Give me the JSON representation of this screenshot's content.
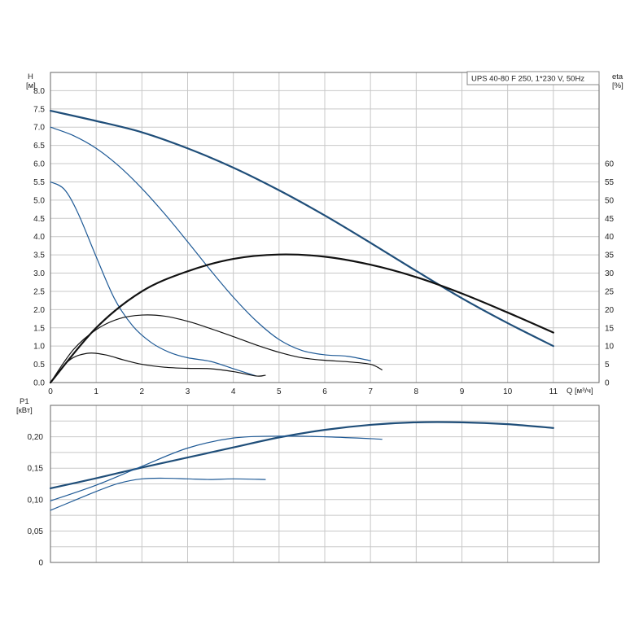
{
  "chart_data": [
    {
      "type": "line",
      "legend": "UPS 40-80 F 250, 1*230 V, 50Hz",
      "ylabel": "H",
      "yunit": "[м]",
      "y2label": "eta",
      "y2unit": "[%]",
      "xlabel": "Q [м³/ч]",
      "xlim": [
        0,
        12
      ],
      "ylim": [
        0,
        8.5
      ],
      "y2lim": [
        0,
        85
      ],
      "xticks": [
        "0",
        "1",
        "2",
        "3",
        "4",
        "5",
        "6",
        "7",
        "8",
        "9",
        "10",
        "11"
      ],
      "yticks": [
        "0.0",
        "0.5",
        "1.0",
        "1.5",
        "2.0",
        "2.5",
        "3.0",
        "3.5",
        "4.0",
        "4.5",
        "5.0",
        "5.5",
        "6.0",
        "6.5",
        "7.0",
        "7.5",
        "8.0"
      ],
      "y2ticks": [
        "0",
        "5",
        "10",
        "15",
        "20",
        "25",
        "30",
        "35",
        "40",
        "45",
        "50",
        "55",
        "60"
      ],
      "series": [
        {
          "kind": "head",
          "color": "#1f4e79",
          "width": 2.2,
          "x": [
            0,
            1,
            2,
            3,
            4,
            5,
            6,
            7,
            8,
            9,
            10,
            11
          ],
          "y": [
            7.45,
            7.17,
            6.86,
            6.42,
            5.89,
            5.27,
            4.58,
            3.83,
            3.06,
            2.31,
            1.63,
            1.0
          ]
        },
        {
          "kind": "head",
          "color": "#1f5a96",
          "width": 1.2,
          "x": [
            0,
            0.5,
            1,
            1.5,
            2,
            2.5,
            3,
            3.5,
            4,
            4.5,
            5,
            5.5,
            6,
            6.5,
            7
          ],
          "y": [
            7.0,
            6.77,
            6.42,
            5.93,
            5.32,
            4.62,
            3.86,
            3.08,
            2.34,
            1.69,
            1.18,
            0.88,
            0.76,
            0.72,
            0.6
          ]
        },
        {
          "kind": "head",
          "color": "#1f5a96",
          "width": 1.2,
          "x": [
            0,
            0.3,
            0.6,
            1.0,
            1.4,
            1.8,
            2.2,
            2.6,
            3.0,
            3.5,
            4.0,
            4.5
          ],
          "y": [
            5.5,
            5.3,
            4.65,
            3.45,
            2.3,
            1.55,
            1.1,
            0.83,
            0.68,
            0.58,
            0.38,
            0.18
          ]
        },
        {
          "kind": "eta",
          "color": "#111111",
          "width": 2.2,
          "x": [
            0,
            1,
            2,
            3,
            4,
            5,
            6,
            7,
            8,
            9,
            10,
            11
          ],
          "y": [
            0,
            15,
            25,
            30.5,
            33.9,
            35.1,
            34.5,
            32.3,
            28.9,
            24.4,
            19.2,
            13.7
          ]
        },
        {
          "kind": "eta",
          "color": "#111111",
          "width": 1.2,
          "x": [
            0,
            0.5,
            1,
            1.5,
            2,
            2.5,
            3,
            3.5,
            4,
            4.5,
            5,
            5.5,
            6,
            6.5,
            7,
            7.25
          ],
          "y": [
            0,
            9,
            14.5,
            17.5,
            18.5,
            18.2,
            16.8,
            14.8,
            12.6,
            10.3,
            8.3,
            6.8,
            6.1,
            5.7,
            5.0,
            3.5
          ]
        },
        {
          "kind": "eta",
          "color": "#111111",
          "width": 1.2,
          "x": [
            0,
            0.4,
            0.8,
            1.2,
            1.6,
            2.0,
            2.5,
            3.0,
            3.5,
            4.0,
            4.5,
            4.7
          ],
          "y": [
            0,
            6,
            8.0,
            7.6,
            6.2,
            5.0,
            4.2,
            3.9,
            3.8,
            3.0,
            1.8,
            2.0
          ]
        }
      ]
    },
    {
      "type": "line",
      "ylabel": "P1",
      "yunit": "[кВт]",
      "xlim": [
        0,
        12
      ],
      "ylim": [
        0,
        0.25
      ],
      "yticks": [
        "0",
        "0,05",
        "0,10",
        "0,15",
        "0,20"
      ],
      "series": [
        {
          "color": "#1f4e79",
          "width": 2.2,
          "x": [
            0,
            1,
            2,
            3,
            4,
            5,
            6,
            7,
            8,
            9,
            10,
            11
          ],
          "y": [
            0.118,
            0.134,
            0.151,
            0.167,
            0.183,
            0.199,
            0.211,
            0.219,
            0.223,
            0.223,
            0.22,
            0.214
          ]
        },
        {
          "color": "#1f5a96",
          "width": 1.2,
          "x": [
            0,
            1,
            2,
            3,
            4,
            5,
            6,
            7,
            7.25
          ],
          "y": [
            0.098,
            0.123,
            0.153,
            0.182,
            0.198,
            0.201,
            0.2,
            0.197,
            0.196
          ]
        },
        {
          "color": "#1f5a96",
          "width": 1.2,
          "x": [
            0,
            0.5,
            1,
            1.5,
            2,
            2.5,
            3,
            3.5,
            4,
            4.7
          ],
          "y": [
            0.083,
            0.098,
            0.113,
            0.126,
            0.133,
            0.134,
            0.133,
            0.132,
            0.133,
            0.132
          ]
        }
      ]
    }
  ]
}
